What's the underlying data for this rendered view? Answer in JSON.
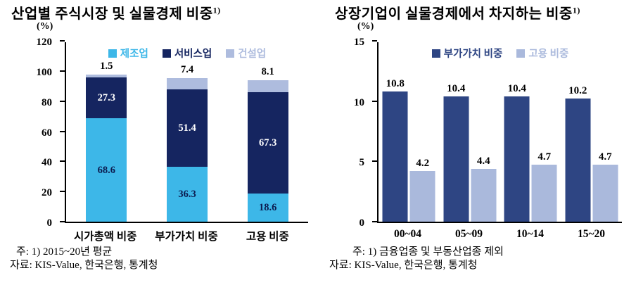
{
  "chart_data": [
    {
      "type": "bar",
      "subtype": "stacked",
      "title": "산업별 주식시장 및 실물경제 비중",
      "title_sup": "1)",
      "unit": "(%)",
      "ylim": [
        0,
        120
      ],
      "yticks": [
        0,
        20,
        40,
        60,
        80,
        100,
        120
      ],
      "categories": [
        "시가총액 비중",
        "부가가치 비중",
        "고용 비중"
      ],
      "series": [
        {
          "name": "제조업",
          "color": "#3db7e8",
          "values": [
            68.6,
            36.3,
            18.6
          ],
          "value_labels": "inside",
          "value_label_color": "#0c1c50"
        },
        {
          "name": "서비스업",
          "color": "#152560",
          "values": [
            27.3,
            51.4,
            67.3
          ],
          "value_labels": "inside",
          "value_label_color": "#ffffff"
        },
        {
          "name": "건설업",
          "color": "#aebcde",
          "values": [
            1.5,
            7.4,
            8.1
          ],
          "value_labels": "above",
          "value_label_color": "#000000"
        }
      ],
      "legend_position": "top",
      "grid": false,
      "notes": [
        "주: 1) 2015~20년 평균",
        "자료: KIS-Value, 한국은행, 통계청"
      ]
    },
    {
      "type": "bar",
      "subtype": "grouped",
      "title": "상장기업이 실물경제에서 차지하는 비중",
      "title_sup": "1)",
      "unit": "(%)",
      "ylim": [
        0,
        15
      ],
      "yticks": [
        0,
        5,
        10,
        15
      ],
      "categories": [
        "00~04",
        "05~09",
        "10~14",
        "15~20"
      ],
      "series": [
        {
          "name": "부가가치 비중",
          "color": "#2e4583",
          "values": [
            10.8,
            10.4,
            10.4,
            10.2
          ],
          "value_labels": "above",
          "value_label_color": "#000000"
        },
        {
          "name": "고용 비중",
          "color": "#aab9dc",
          "values": [
            4.2,
            4.4,
            4.7,
            4.7
          ],
          "value_labels": "above",
          "value_label_color": "#000000"
        }
      ],
      "legend_position": "top",
      "grid": false,
      "notes": [
        "주: 1) 금융업종 및 부동산업종 제외",
        "자료: KIS-Value, 한국은행, 통계청"
      ]
    }
  ]
}
